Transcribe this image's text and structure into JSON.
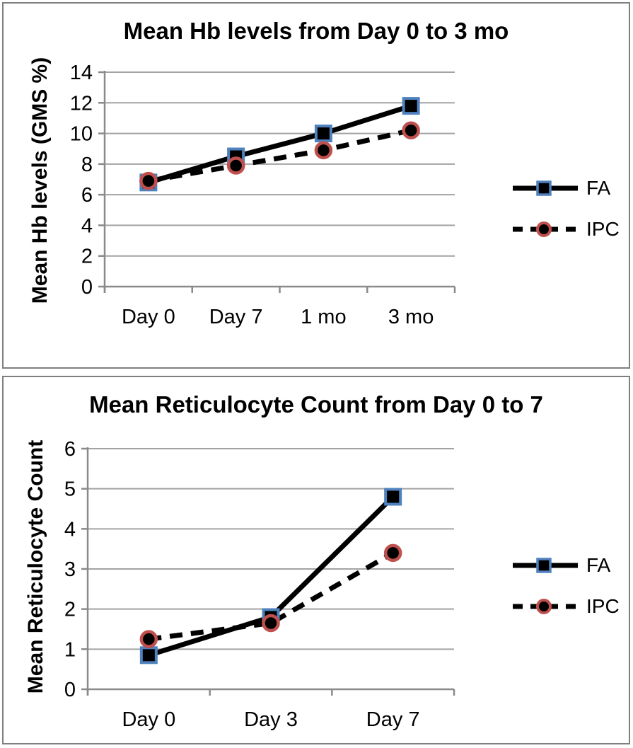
{
  "page": {
    "background": "#ffffff",
    "panel_border_color": "#7f7f7f"
  },
  "colors": {
    "series_line": "#000000",
    "marker_fill": "#000000",
    "fa_marker_border": "#4F81BD",
    "ipc_marker_border": "#C0504D",
    "gridline": "#A3A3A3",
    "axis": "#8a8a8a",
    "text": "#000000"
  },
  "chart_data": [
    {
      "type": "line",
      "title": "Mean Hb levels from Day 0 to 3 mo",
      "ylabel": "Mean Hb levels (GMS %)",
      "xlabel": "",
      "categories": [
        "Day 0",
        "Day 7",
        "1 mo",
        "3 mo"
      ],
      "ylim": [
        0,
        14
      ],
      "ytick_step": 2,
      "ytick_labels": [
        "0",
        "2",
        "4",
        "6",
        "8",
        "10",
        "12",
        "14"
      ],
      "grid": true,
      "legend_position": "right",
      "series": [
        {
          "name": "FA",
          "values": [
            6.8,
            8.5,
            10.0,
            11.8
          ],
          "line_style": "solid",
          "marker": "square",
          "marker_border": "#4F81BD"
        },
        {
          "name": "IPC",
          "values": [
            6.9,
            7.9,
            8.9,
            10.2
          ],
          "line_style": "dashed",
          "marker": "circle",
          "marker_border": "#C0504D"
        }
      ]
    },
    {
      "type": "line",
      "title": "Mean Reticulocyte Count from Day 0 to 7",
      "ylabel": "Mean Reticulocyte Count",
      "xlabel": "",
      "categories": [
        "Day 0",
        "Day 3",
        "Day 7"
      ],
      "ylim": [
        0,
        6
      ],
      "ytick_step": 1,
      "ytick_labels": [
        "0",
        "1",
        "2",
        "3",
        "4",
        "5",
        "6"
      ],
      "grid": true,
      "legend_position": "right",
      "series": [
        {
          "name": "FA",
          "values": [
            0.85,
            1.8,
            4.8
          ],
          "line_style": "solid",
          "marker": "square",
          "marker_border": "#4F81BD"
        },
        {
          "name": "IPC",
          "values": [
            1.25,
            1.65,
            3.4
          ],
          "line_style": "dashed",
          "marker": "circle",
          "marker_border": "#C0504D"
        }
      ]
    }
  ]
}
